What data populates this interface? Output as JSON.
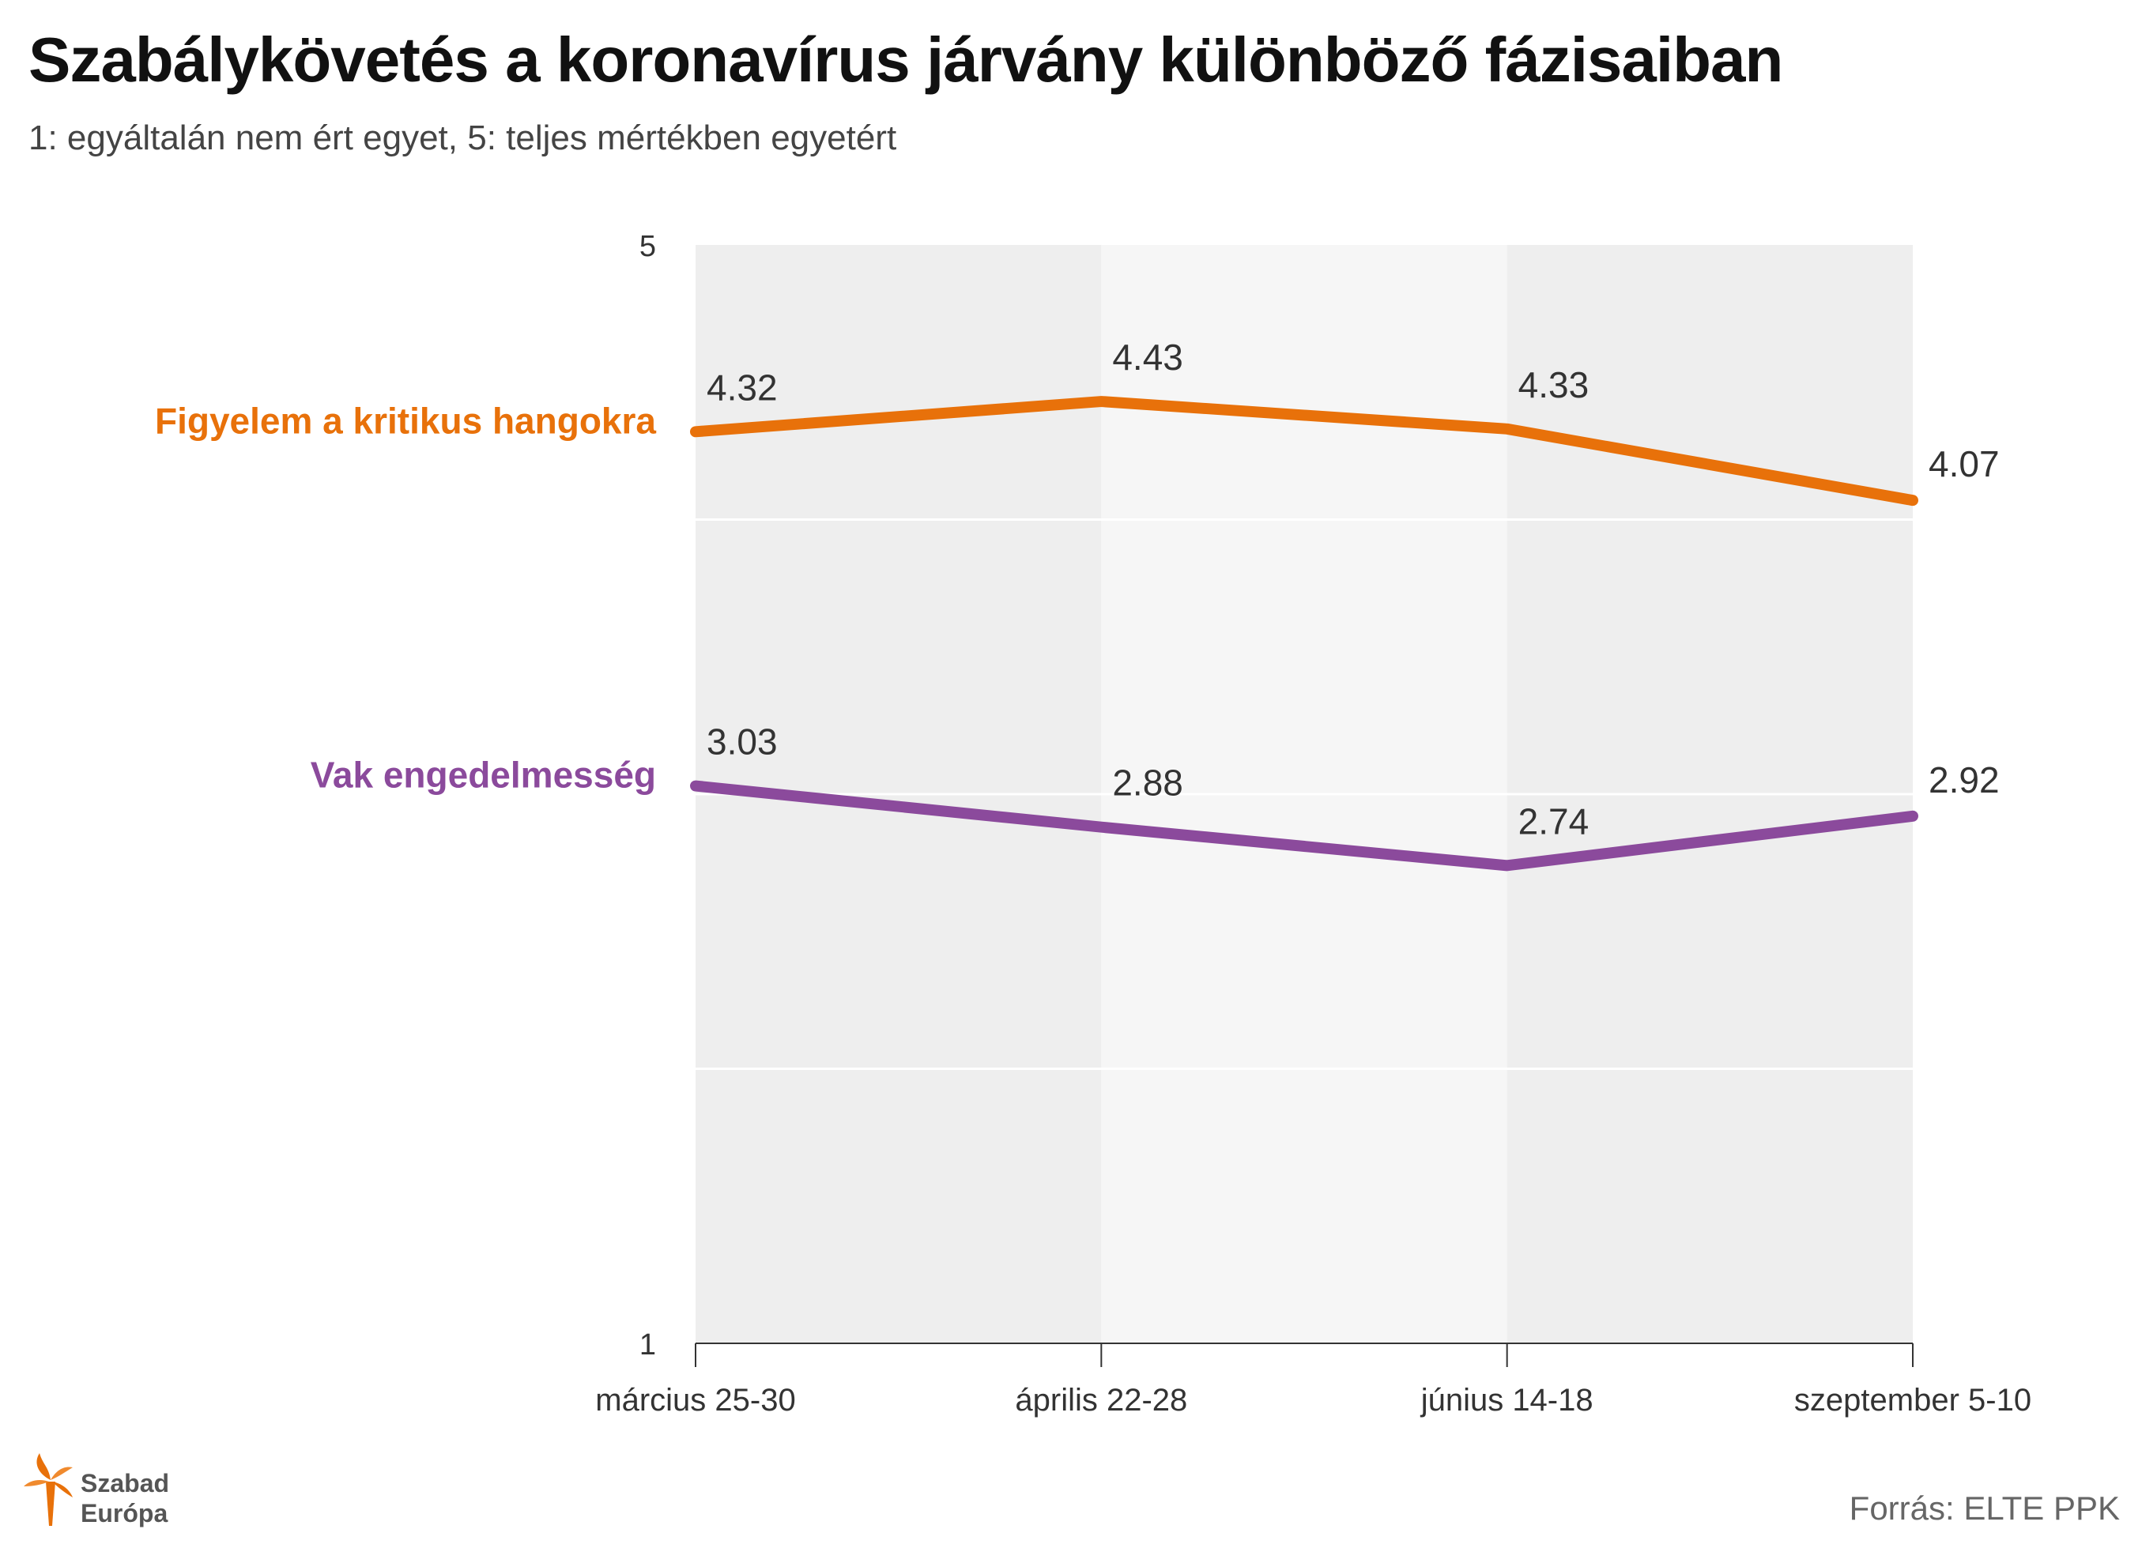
{
  "title": "Szabálykövetés a koronavírus járvány különböző fázisaiban",
  "subtitle": "1: egyáltalán nem ért egyet, 5: teljes mértékben egyetért",
  "source": "Forrás:  ELTE PPK",
  "logo": {
    "line1": "Szabad",
    "line2": "Európa",
    "icon": "torch-icon"
  },
  "colors": {
    "orange": "#E8710A",
    "purple": "#8B4A9C",
    "band_dark": "#EEEEEE",
    "band_light": "#F6F6F6",
    "grid": "#FFFFFF"
  },
  "chart_data": {
    "type": "line",
    "categories": [
      "március 25-30",
      "április 22-28",
      "június 14-18",
      "szeptember 5-10"
    ],
    "y_ticks": [
      "1",
      "5"
    ],
    "ylim": [
      1,
      5
    ],
    "grid": true,
    "series": [
      {
        "name": "Figyelem a kritikus hangokra",
        "color": "#E8710A",
        "values": [
          4.32,
          4.43,
          4.33,
          4.07
        ],
        "labels": [
          "4.32",
          "4.43",
          "4.33",
          "4.07"
        ]
      },
      {
        "name": "Vak engedelmesség",
        "color": "#8B4A9C",
        "values": [
          3.03,
          2.88,
          2.74,
          2.92
        ],
        "labels": [
          "3.03",
          "2.88",
          "2.74",
          "2.92"
        ]
      }
    ]
  }
}
